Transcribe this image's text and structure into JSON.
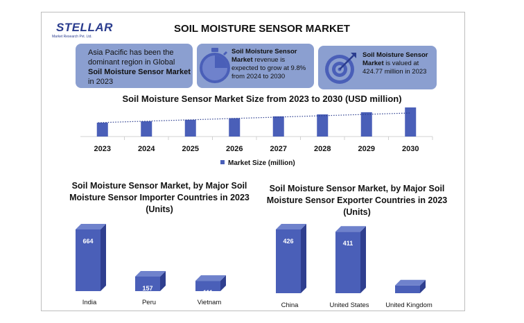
{
  "logo": {
    "name": "STELLAR",
    "tagline": "Market Research Pvt. Ltd."
  },
  "title": "SOIL MOISTURE SENSOR MARKET",
  "cards": {
    "region": {
      "text_a": "Asia Pacific has been the dominant region in Global ",
      "text_b": "Soil Moisture Sensor Market",
      "text_c": " in 2023"
    },
    "growth": {
      "text_a": "Soil Moisture Sensor Market",
      "text_b": " revenue is expected to grow at 9.8% from 2024 to 2030",
      "icon": "stopwatch-icon"
    },
    "value": {
      "text_a": "Soil Moisture Sensor Market",
      "text_b": " is valued at 424.77 million in 2023",
      "icon": "target-icon"
    }
  },
  "colors": {
    "bar": "#4a5fb8",
    "bar_dark": "#2f3f8f",
    "bar_top": "#6f82cc",
    "card": "#8b9fd0",
    "trend": "#2a3c8e"
  },
  "chart_data": [
    {
      "type": "bar",
      "title": "Soil Moisture Sensor Market Size from 2023 to 2030 (USD million)",
      "categories": [
        "2023",
        "2024",
        "2025",
        "2026",
        "2027",
        "2028",
        "2029",
        "2030"
      ],
      "series": [
        {
          "name": "Market Size (million)",
          "values": [
            424.77,
            466,
            512,
            562,
            617,
            677,
            744,
            890
          ]
        }
      ],
      "trendline": "dotted",
      "legend": "bottom-center"
    },
    {
      "type": "bar",
      "title": "Soil Moisture Sensor Market, by Major Soil Moisture Sensor Importer Countries in 2023 (Units)",
      "categories": [
        "India",
        "Peru",
        "Vietnam"
      ],
      "values": [
        664,
        157,
        111
      ]
    },
    {
      "type": "bar",
      "title": "Soil Moisture Sensor Market, by Major Soil Moisture Sensor Exporter Countries in 2023 (Units)",
      "categories": [
        "China",
        "United States",
        "United Kingdom"
      ],
      "values": [
        426,
        411,
        52
      ]
    }
  ]
}
